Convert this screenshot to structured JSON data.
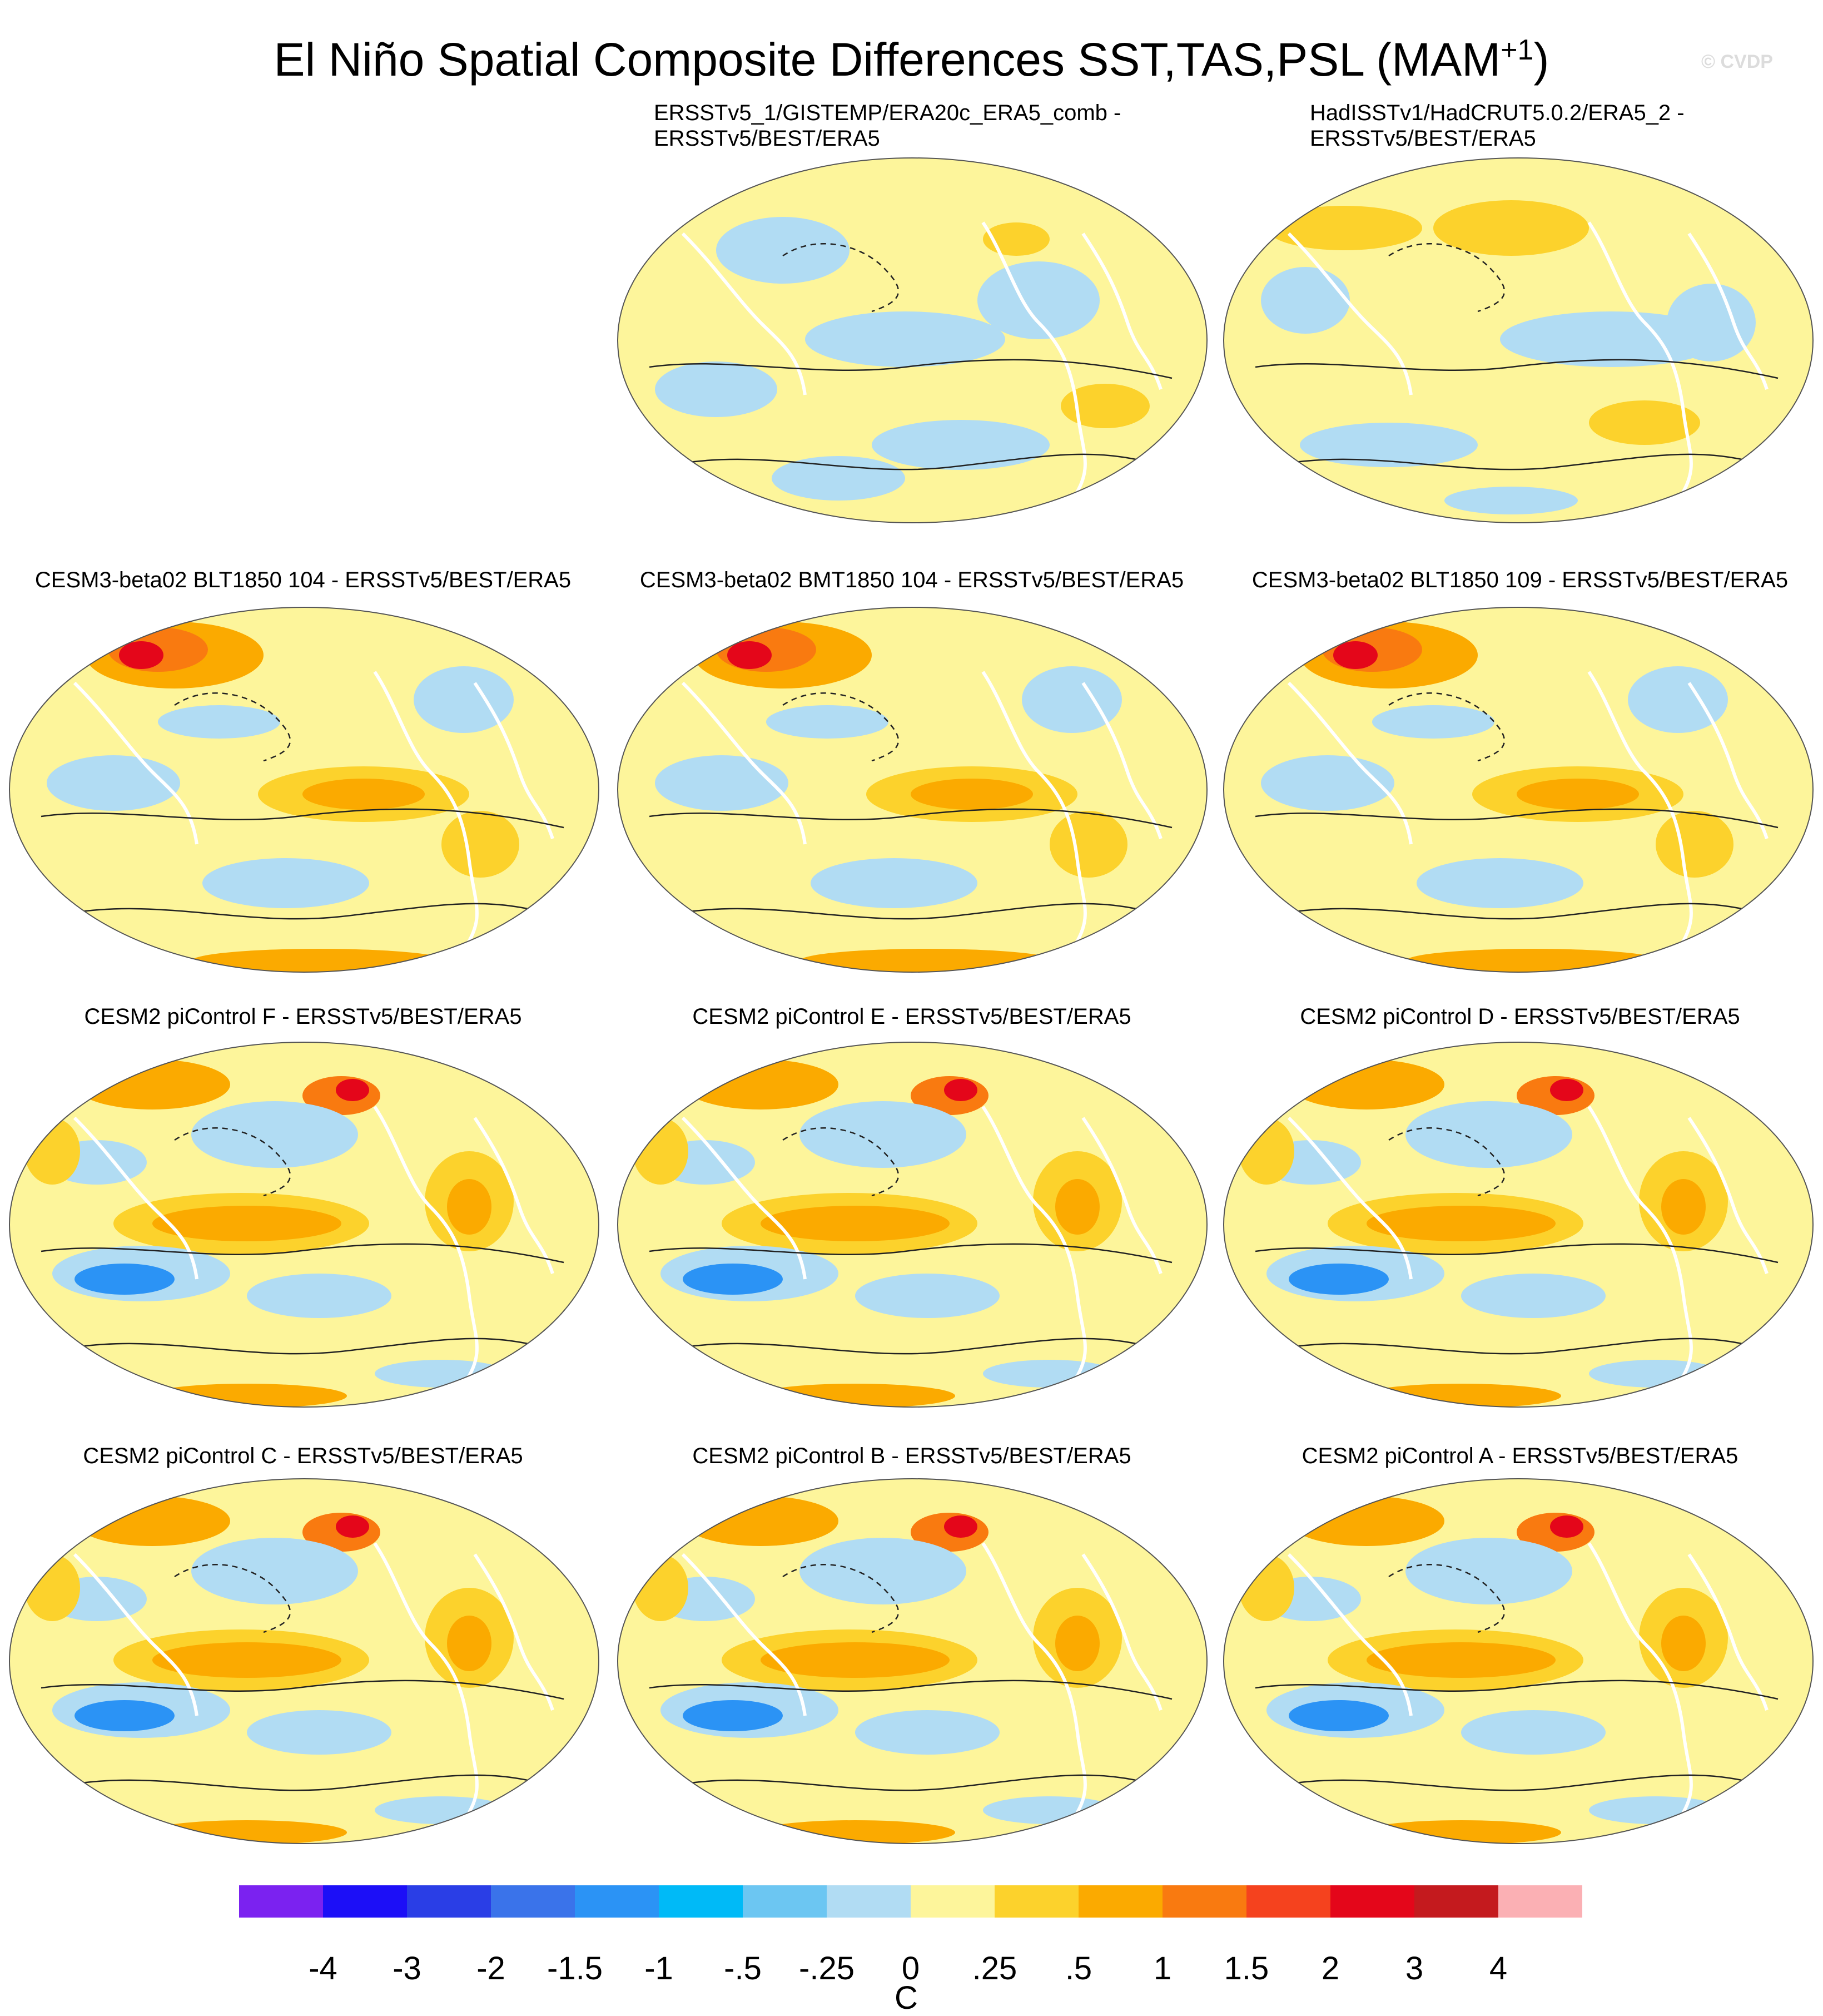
{
  "title": {
    "main": "El Niño Spatial Composite Differences SST,TAS,PSL (MAM",
    "superscript": "+1",
    "close": ")"
  },
  "watermark": "© CVDP",
  "panels": [
    {
      "id": "obs1",
      "title_line1": "ERSSTv5_1/GISTEMP/ERA20c_ERA5_comb -",
      "title_line2": "ERSSTv5/BEST/ERA5",
      "pattern": "obs"
    },
    {
      "id": "obs2",
      "title_line1": "HadISSTv1/HadCRUT5.0.2/ERA5_2 -",
      "title_line2": "ERSSTv5/BEST/ERA5",
      "pattern": "obs2"
    },
    {
      "id": "m1",
      "title_line1": "CESM3-beta02 BLT1850 104 - ERSSTv5/BEST/ERA5",
      "pattern": "beta"
    },
    {
      "id": "m2",
      "title_line1": "CESM3-beta02 BMT1850 104 - ERSSTv5/BEST/ERA5",
      "pattern": "beta"
    },
    {
      "id": "m3",
      "title_line1": "CESM3-beta02 BLT1850 109 - ERSSTv5/BEST/ERA5",
      "pattern": "beta"
    },
    {
      "id": "m4",
      "title_line1": "CESM2 piControl F - ERSSTv5/BEST/ERA5",
      "pattern": "pic"
    },
    {
      "id": "m5",
      "title_line1": "CESM2 piControl E - ERSSTv5/BEST/ERA5",
      "pattern": "pic"
    },
    {
      "id": "m6",
      "title_line1": "CESM2 piControl D - ERSSTv5/BEST/ERA5",
      "pattern": "pic"
    },
    {
      "id": "m7",
      "title_line1": "CESM2 piControl C - ERSSTv5/BEST/ERA5",
      "pattern": "pic"
    },
    {
      "id": "m8",
      "title_line1": "CESM2 piControl B - ERSSTv5/BEST/ERA5",
      "pattern": "pic"
    },
    {
      "id": "m9",
      "title_line1": "CESM2 piControl A - ERSSTv5/BEST/ERA5",
      "pattern": "pic"
    }
  ],
  "colorbar": {
    "colors": [
      "#7b22f0",
      "#1c0ff7",
      "#2a3ee6",
      "#3a73ea",
      "#2b93f5",
      "#00baf7",
      "#6cc6f2",
      "#b1dcf3",
      "#fdf59b",
      "#fcd22c",
      "#fbaa00",
      "#f97a10",
      "#f5421e",
      "#e4061a",
      "#c41a1e",
      "#fbb0b4"
    ],
    "labels": [
      "-4",
      "-3",
      "-2",
      "-1.5",
      "-1",
      "-.5",
      "-.25",
      "0",
      ".25",
      ".5",
      "1",
      "1.5",
      "2",
      "3",
      "4"
    ],
    "units": "C"
  },
  "palette": {
    "yellow": "#fdf59b",
    "lightblue": "#b1dcf3",
    "orange1": "#fcd22c",
    "orange2": "#fbaa00",
    "orange3": "#f97a10",
    "red": "#e4061a",
    "blue": "#2b93f5"
  }
}
